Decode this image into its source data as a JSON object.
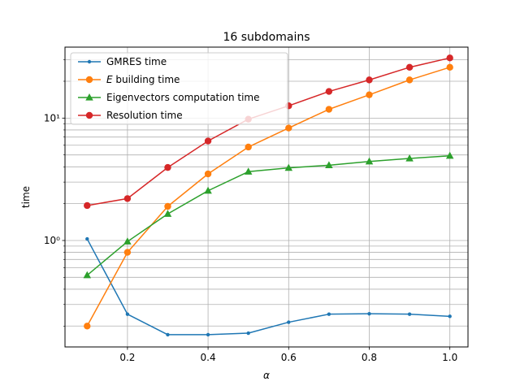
{
  "chart_data": {
    "type": "line",
    "title": "16 subdomains",
    "xlabel": "α",
    "ylabel": "time",
    "x": [
      0.1,
      0.2,
      0.3,
      0.4,
      0.5,
      0.6,
      0.7,
      0.8,
      0.9,
      1.0
    ],
    "xlim": [
      0.045,
      1.045
    ],
    "ylim": [
      0.135,
      38
    ],
    "yscale": "log",
    "x_ticks": [
      0.2,
      0.4,
      0.6,
      0.8,
      1.0
    ],
    "x_tick_labels": [
      "0.2",
      "0.4",
      "0.6",
      "0.8",
      "1.0"
    ],
    "y_major_ticks": [
      1,
      10
    ],
    "y_major_tick_labels": [
      "10⁰",
      "10¹"
    ],
    "grid": "both (major and minor)",
    "legend_position": "upper left",
    "series": [
      {
        "name": "GMRES time",
        "color": "#1f77b4",
        "marker": "point",
        "values": [
          1.03,
          0.25,
          0.17,
          0.17,
          0.175,
          0.215,
          0.25,
          0.252,
          0.25,
          0.24
        ]
      },
      {
        "name": "E building time",
        "color": "#ff7f0e",
        "marker": "circle",
        "values": [
          0.2,
          0.8,
          1.9,
          3.5,
          5.8,
          8.3,
          11.8,
          15.5,
          20.5,
          26.0
        ]
      },
      {
        "name": "Eigenvectors computation time",
        "color": "#2ca02c",
        "marker": "triangle",
        "values": [
          0.52,
          0.98,
          1.65,
          2.55,
          3.65,
          3.92,
          4.12,
          4.42,
          4.68,
          4.92
        ]
      },
      {
        "name": "Resolution time",
        "color": "#d62728",
        "marker": "circle",
        "values": [
          1.93,
          2.2,
          3.95,
          6.5,
          9.8,
          12.6,
          16.5,
          20.5,
          26.0,
          31.0
        ]
      }
    ]
  }
}
